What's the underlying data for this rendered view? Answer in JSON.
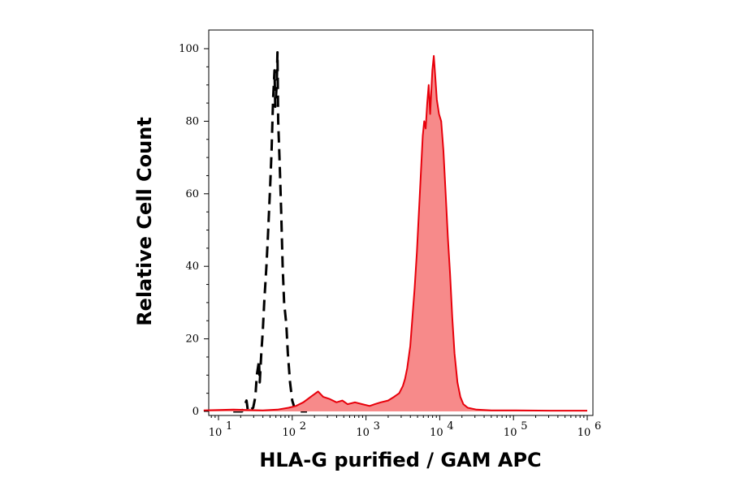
{
  "chart_data": {
    "type": "area",
    "xlabel": "HLA-G purified / GAM APC",
    "ylabel": "Relative Cell Count",
    "x_scale": "log",
    "xlim": [
      0.72,
      6.0
    ],
    "ylim": [
      0,
      100
    ],
    "y_ticks": [
      {
        "value": 0,
        "label": "0"
      },
      {
        "value": 20,
        "label": "20"
      },
      {
        "value": 40,
        "label": "40"
      },
      {
        "value": 60,
        "label": "60"
      },
      {
        "value": 80,
        "label": "80"
      },
      {
        "value": 100,
        "label": "100"
      }
    ],
    "x_ticks": [
      {
        "decade": 1,
        "base": "10",
        "exp": "1"
      },
      {
        "decade": 2,
        "base": "10",
        "exp": "2"
      },
      {
        "decade": 3,
        "base": "10",
        "exp": "3"
      },
      {
        "decade": 4,
        "base": "10",
        "exp": "4"
      },
      {
        "decade": 5,
        "base": "10",
        "exp": "5"
      },
      {
        "decade": 6,
        "base": "10",
        "exp": "6"
      }
    ],
    "series": [
      {
        "style": "dashed-black",
        "color": "#000000",
        "points": [
          [
            1.2,
            0
          ],
          [
            1.32,
            0
          ],
          [
            1.38,
            3
          ],
          [
            1.4,
            0
          ],
          [
            1.47,
            1
          ],
          [
            1.5,
            4
          ],
          [
            1.52,
            10
          ],
          [
            1.55,
            14
          ],
          [
            1.56,
            8
          ],
          [
            1.58,
            16
          ],
          [
            1.6,
            22
          ],
          [
            1.62,
            30
          ],
          [
            1.65,
            40
          ],
          [
            1.67,
            48
          ],
          [
            1.7,
            62
          ],
          [
            1.72,
            72
          ],
          [
            1.74,
            86
          ],
          [
            1.76,
            94
          ],
          [
            1.77,
            84
          ],
          [
            1.79,
            90
          ],
          [
            1.8,
            99
          ],
          [
            1.81,
            80
          ],
          [
            1.83,
            68
          ],
          [
            1.85,
            55
          ],
          [
            1.87,
            40
          ],
          [
            1.89,
            30
          ],
          [
            1.92,
            24
          ],
          [
            1.94,
            16
          ],
          [
            1.97,
            8
          ],
          [
            2.0,
            3
          ],
          [
            2.03,
            1
          ],
          [
            2.06,
            0
          ],
          [
            2.2,
            0
          ]
        ]
      },
      {
        "style": "filled-red",
        "color": "#e8000b",
        "fill": "#f78a8a",
        "points": [
          [
            0.8,
            0.3
          ],
          [
            1.0,
            0.4
          ],
          [
            1.2,
            0.5
          ],
          [
            1.4,
            0.4
          ],
          [
            1.6,
            0.3
          ],
          [
            1.8,
            0.5
          ],
          [
            1.95,
            1
          ],
          [
            2.05,
            1.5
          ],
          [
            2.15,
            2.5
          ],
          [
            2.25,
            4
          ],
          [
            2.35,
            5.5
          ],
          [
            2.42,
            4
          ],
          [
            2.5,
            3.5
          ],
          [
            2.6,
            2.5
          ],
          [
            2.68,
            3
          ],
          [
            2.75,
            2
          ],
          [
            2.85,
            2.5
          ],
          [
            2.95,
            2
          ],
          [
            3.05,
            1.5
          ],
          [
            3.12,
            2
          ],
          [
            3.2,
            2.5
          ],
          [
            3.3,
            3
          ],
          [
            3.38,
            4
          ],
          [
            3.45,
            5
          ],
          [
            3.5,
            7
          ],
          [
            3.53,
            9
          ],
          [
            3.56,
            12
          ],
          [
            3.6,
            18
          ],
          [
            3.63,
            26
          ],
          [
            3.66,
            34
          ],
          [
            3.69,
            44
          ],
          [
            3.72,
            56
          ],
          [
            3.75,
            68
          ],
          [
            3.77,
            76
          ],
          [
            3.79,
            80
          ],
          [
            3.81,
            78
          ],
          [
            3.83,
            85
          ],
          [
            3.85,
            90
          ],
          [
            3.87,
            82
          ],
          [
            3.9,
            94
          ],
          [
            3.92,
            98
          ],
          [
            3.94,
            92
          ],
          [
            3.96,
            86
          ],
          [
            3.99,
            82
          ],
          [
            4.02,
            80
          ],
          [
            4.05,
            72
          ],
          [
            4.08,
            60
          ],
          [
            4.11,
            48
          ],
          [
            4.14,
            38
          ],
          [
            4.17,
            26
          ],
          [
            4.2,
            16
          ],
          [
            4.24,
            8
          ],
          [
            4.28,
            4
          ],
          [
            4.32,
            2
          ],
          [
            4.38,
            1
          ],
          [
            4.5,
            0.5
          ],
          [
            4.7,
            0.3
          ],
          [
            5.0,
            0.3
          ],
          [
            5.5,
            0.2
          ],
          [
            6.0,
            0.2
          ]
        ]
      }
    ],
    "grid": false,
    "legend": "none"
  }
}
